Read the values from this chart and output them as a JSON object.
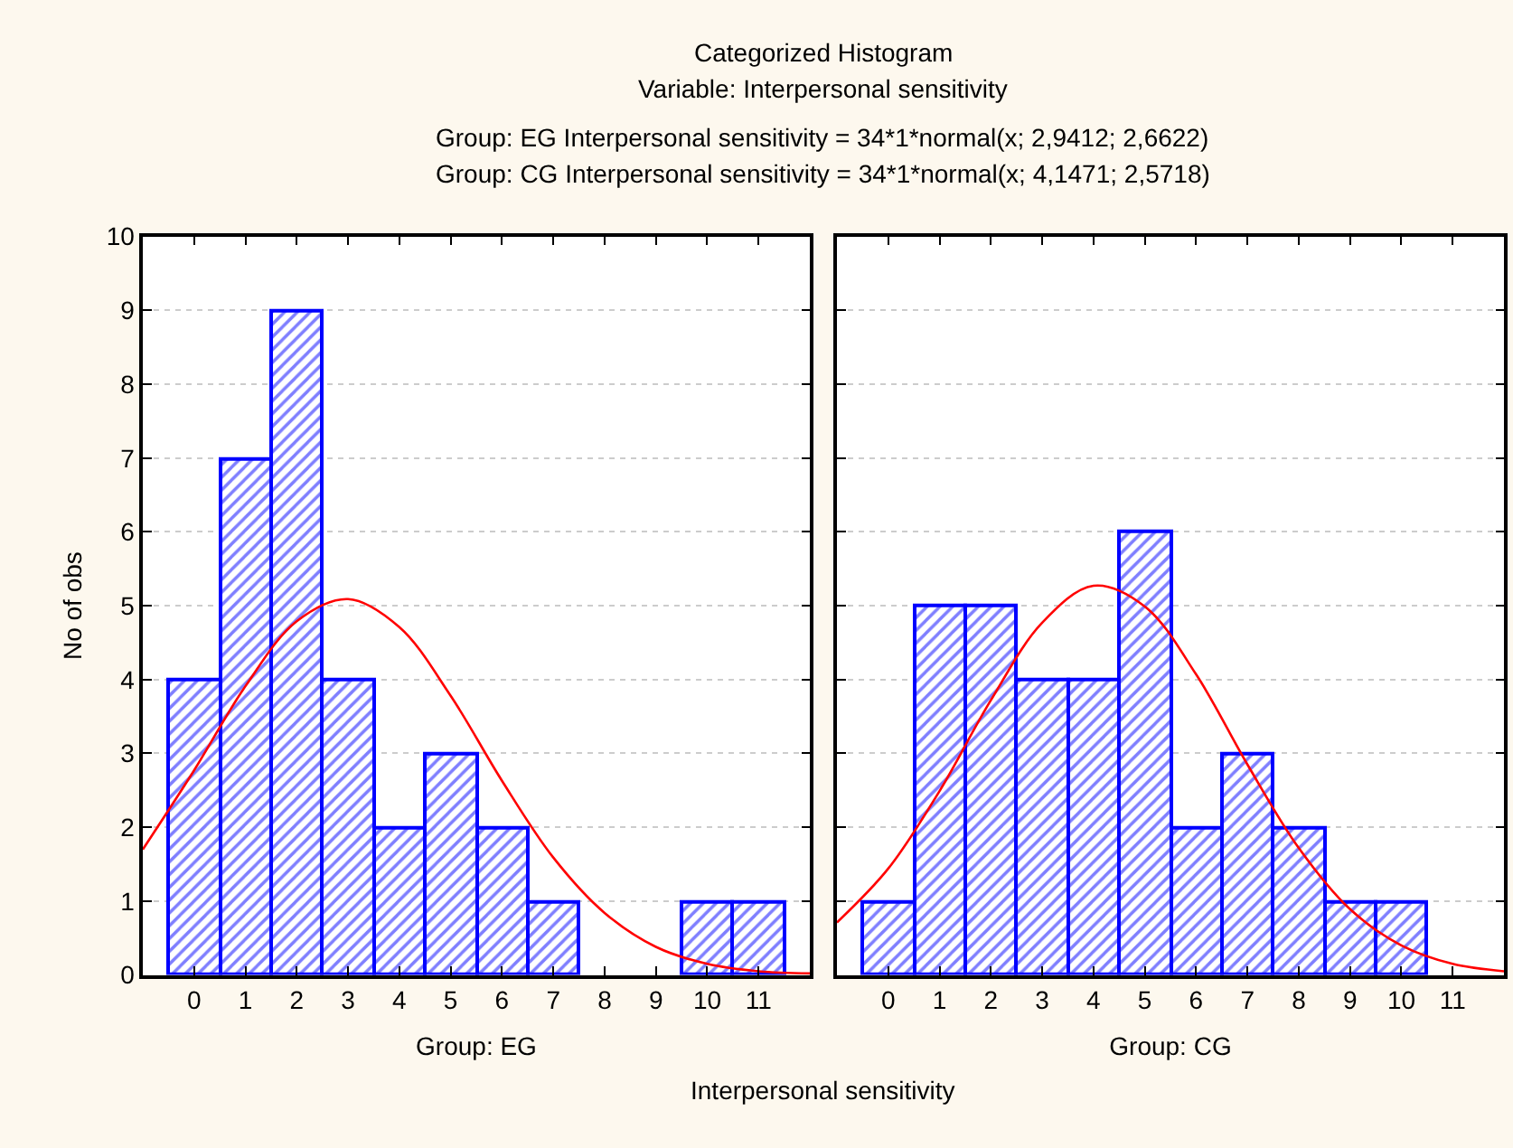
{
  "chart_data": [
    {
      "type": "histogram",
      "title": "Categorized Histogram",
      "subtitle": "Variable: Interpersonal sensitivity",
      "annotations": [
        "Group: EG Interpersonal sensitivity = 34*1*normal(x; 2,9412; 2,6622)",
        "Group: CG Interpersonal sensitivity = 34*1*normal(x; 4,1471; 2,5718)",
        "Interpersonal sensitivity"
      ],
      "xlabel": "Group: EG",
      "ylabel": "No of obs",
      "bins": [
        -0.5,
        0.5,
        1.5,
        2.5,
        3.5,
        4.5,
        5.5,
        6.5,
        7.5,
        8.5,
        9.5,
        10.5,
        11.5
      ],
      "series": [
        {
          "color": "#0000ff",
          "values": [
            4,
            7,
            9,
            4,
            2,
            3,
            2,
            1,
            0,
            0,
            1,
            1
          ]
        },
        {
          "type": "line",
          "color": "#ff0000",
          "x": [
            -1,
            0,
            1,
            2,
            3,
            4,
            5,
            6,
            7,
            8,
            9,
            10,
            11,
            12
          ],
          "values": [
            1.7,
            2.77,
            3.91,
            4.79,
            5.09,
            4.71,
            3.78,
            2.63,
            1.59,
            0.84,
            0.38,
            0.15,
            0.05,
            0.02
          ]
        }
      ],
      "xlim": [
        -1,
        12
      ],
      "xticks": [
        0,
        1,
        2,
        3,
        4,
        5,
        6,
        7,
        8,
        9,
        10,
        11
      ],
      "ylim": [
        0,
        10
      ],
      "yticks": [
        0,
        1,
        2,
        3,
        4,
        5,
        6,
        7,
        8,
        9,
        10
      ],
      "grid": "y"
    },
    {
      "type": "histogram",
      "xlabel": "Group: CG",
      "bins": [
        -0.5,
        0.5,
        1.5,
        2.5,
        3.5,
        4.5,
        5.5,
        6.5,
        7.5,
        8.5,
        9.5,
        10.5,
        11.5
      ],
      "series": [
        {
          "color": "#0000ff",
          "values": [
            1,
            5,
            5,
            4,
            4,
            6,
            2,
            3,
            2,
            1,
            1,
            0
          ]
        },
        {
          "type": "line",
          "color": "#ff0000",
          "x": [
            -1,
            0,
            1,
            2,
            3,
            4,
            5,
            6,
            7,
            8,
            9,
            10,
            11,
            12
          ],
          "values": [
            0.71,
            1.44,
            2.49,
            3.72,
            4.77,
            5.27,
            4.99,
            4.07,
            2.85,
            1.72,
            0.89,
            0.4,
            0.15,
            0.05
          ]
        }
      ],
      "xlim": [
        -1,
        12
      ],
      "xticks": [
        0,
        1,
        2,
        3,
        4,
        5,
        6,
        7,
        8,
        9,
        10,
        11
      ],
      "ylim": [
        0,
        10
      ],
      "yticks": [
        0,
        1,
        2,
        3,
        4,
        5,
        6,
        7,
        8,
        9,
        10
      ],
      "grid": "y",
      "tick_labels": "x"
    }
  ]
}
